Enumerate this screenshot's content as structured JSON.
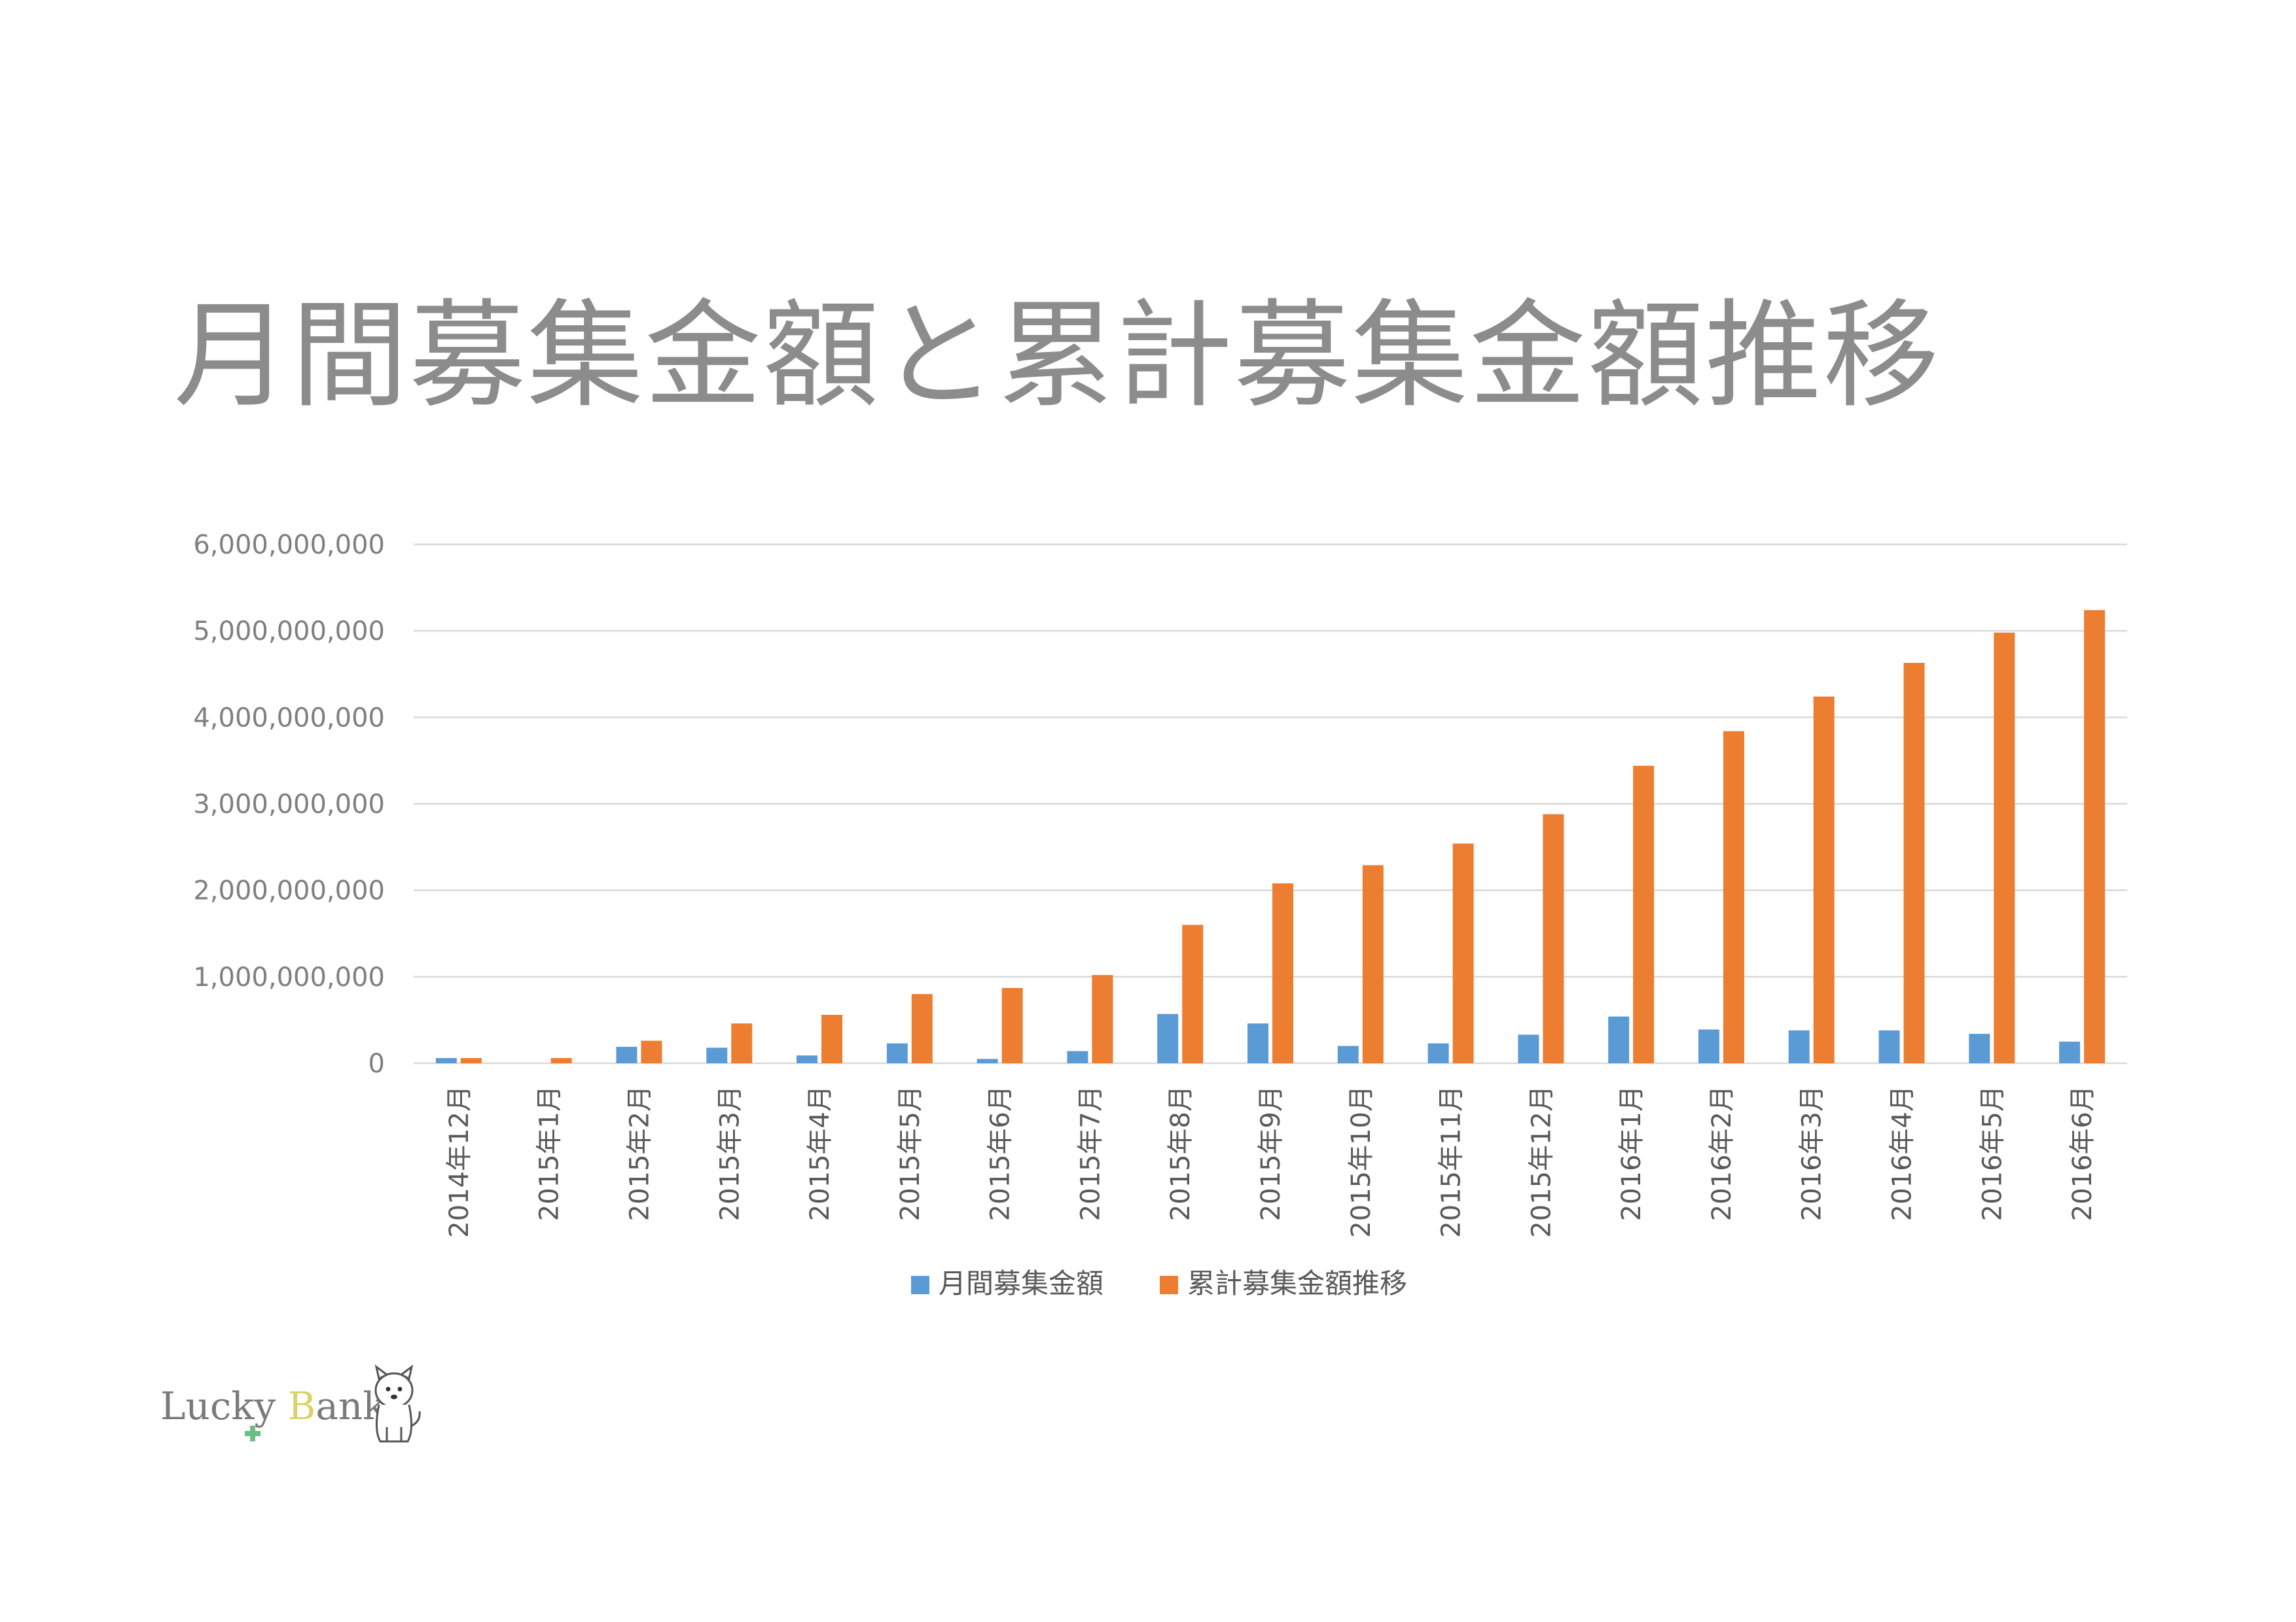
{
  "title": "月間募集金額と累計募集金額推移",
  "logo": {
    "text_left": "Lucky ",
    "text_b": "B",
    "text_right": "ank"
  },
  "colors": {
    "monthly": "#5b9bd5",
    "cumulative": "#ed7d31",
    "grid": "#d9d9d9",
    "title": "#8c8c8c"
  },
  "chart_data": {
    "type": "bar",
    "categories": [
      "2014年12月",
      "2015年1月",
      "2015年2月",
      "2015年3月",
      "2015年4月",
      "2015年5月",
      "2015年6月",
      "2015年7月",
      "2015年8月",
      "2015年9月",
      "2015年10月",
      "2015年11月",
      "2015年12月",
      "2016年1月",
      "2016年2月",
      "2016年3月",
      "2016年4月",
      "2016年5月",
      "2016年6月"
    ],
    "series": [
      {
        "name": "月間募集金額",
        "color": "#5b9bd5",
        "values": [
          60000000,
          0,
          190000000,
          180000000,
          90000000,
          230000000,
          50000000,
          140000000,
          570000000,
          460000000,
          200000000,
          230000000,
          330000000,
          540000000,
          390000000,
          380000000,
          380000000,
          340000000,
          250000000
        ]
      },
      {
        "name": "累計募集金額推移",
        "color": "#ed7d31",
        "values": [
          60000000,
          60000000,
          260000000,
          460000000,
          560000000,
          800000000,
          870000000,
          1020000000,
          1600000000,
          2080000000,
          2290000000,
          2540000000,
          2880000000,
          3440000000,
          3840000000,
          4240000000,
          4630000000,
          4980000000,
          5240000000
        ]
      }
    ],
    "y_ticks": [
      "0",
      "1,000,000,000",
      "2,000,000,000",
      "3,000,000,000",
      "4,000,000,000",
      "5,000,000,000",
      "6,000,000,000"
    ],
    "ylim": [
      0,
      6000000000
    ],
    "grid": true,
    "legend": "bottom"
  }
}
